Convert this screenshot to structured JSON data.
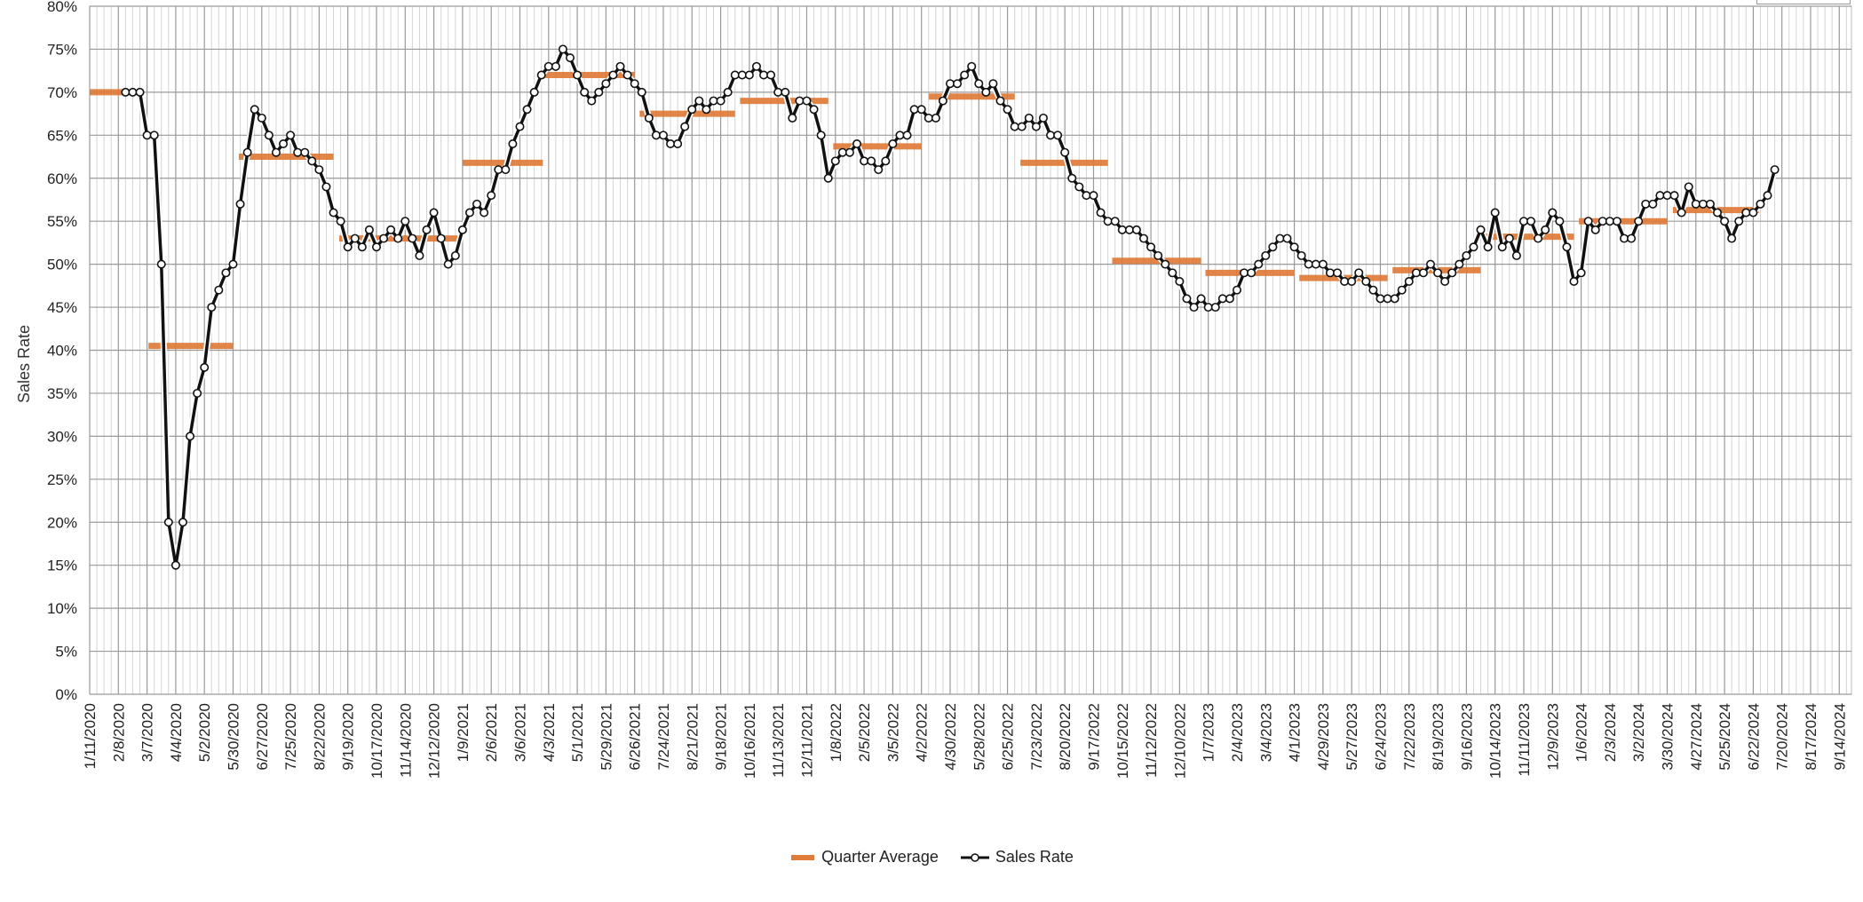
{
  "chart_data": {
    "type": "line",
    "title": "",
    "ylabel": "Sales Rate",
    "xlabel": "",
    "ylim": [
      0,
      80
    ],
    "ytick_step": 5,
    "yticks": [
      "0%",
      "5%",
      "10%",
      "15%",
      "20%",
      "25%",
      "30%",
      "35%",
      "40%",
      "45%",
      "50%",
      "55%",
      "60%",
      "65%",
      "70%",
      "75%",
      "80%"
    ],
    "x_unit": "weeks since 1/11/2020",
    "xlim": [
      0,
      245.7
    ],
    "xtick_interval_weeks": 4,
    "xtick_labels": [
      "1/11/2020",
      "2/8/2020",
      "3/7/2020",
      "4/4/2020",
      "5/2/2020",
      "5/30/2020",
      "6/27/2020",
      "7/25/2020",
      "8/22/2020",
      "9/19/2020",
      "10/17/2020",
      "11/14/2020",
      "12/12/2020",
      "1/9/2021",
      "2/6/2021",
      "3/6/2021",
      "4/3/2021",
      "5/1/2021",
      "5/29/2021",
      "6/26/2021",
      "7/24/2021",
      "8/21/2021",
      "9/18/2021",
      "10/16/2021",
      "11/13/2021",
      "12/11/2021",
      "1/8/2022",
      "2/5/2022",
      "3/5/2022",
      "4/2/2022",
      "4/30/2022",
      "5/28/2022",
      "6/25/2022",
      "7/23/2022",
      "8/20/2022",
      "9/17/2022",
      "10/15/2022",
      "11/12/2022",
      "12/10/2022",
      "1/7/2023",
      "2/4/2023",
      "3/4/2023",
      "4/1/2023",
      "4/29/2023",
      "5/27/2023",
      "6/24/2023",
      "7/22/2023",
      "8/19/2023",
      "9/16/2023",
      "10/14/2023",
      "11/11/2023",
      "12/9/2023",
      "1/6/2024",
      "2/3/2024",
      "3/2/2024",
      "3/30/2024",
      "4/27/2024",
      "5/25/2024",
      "6/22/2024",
      "7/20/2024",
      "8/17/2024",
      "9/14/2024"
    ],
    "grid": true,
    "legend_position": "bottom-center",
    "series": [
      {
        "name": "Sales Rate",
        "color": "#111111",
        "marker": "open-circle",
        "first_week": 5,
        "interval": "weekly",
        "values": [
          70,
          70,
          70,
          65,
          65,
          50,
          20,
          15,
          20,
          30,
          35,
          38,
          45,
          47,
          49,
          50,
          57,
          63,
          68,
          67,
          65,
          63,
          64,
          65,
          63,
          63,
          62,
          61,
          59,
          56,
          55,
          52,
          53,
          52,
          54,
          52,
          53,
          54,
          53,
          55,
          53,
          51,
          54,
          56,
          53,
          50,
          51,
          54,
          56,
          57,
          56,
          58,
          61,
          61,
          64,
          66,
          68,
          70,
          72,
          73,
          73,
          75,
          74,
          72,
          70,
          69,
          70,
          71,
          72,
          73,
          72,
          71,
          70,
          67,
          65,
          65,
          64,
          64,
          66,
          68,
          69,
          68,
          69,
          69,
          70,
          72,
          72,
          72,
          73,
          72,
          72,
          70,
          70,
          67,
          69,
          69,
          68,
          65,
          60,
          62,
          63,
          63,
          64,
          62,
          62,
          61,
          62,
          64,
          65,
          65,
          68,
          68,
          67,
          67,
          69,
          71,
          71,
          72,
          73,
          71,
          70,
          71,
          69,
          68,
          66,
          66,
          67,
          66,
          67,
          65,
          65,
          63,
          60,
          59,
          58,
          58,
          56,
          55,
          55,
          54,
          54,
          54,
          53,
          52,
          51,
          50,
          49,
          48,
          46,
          45,
          46,
          45,
          45,
          46,
          46,
          47,
          49,
          49,
          50,
          51,
          52,
          53,
          53,
          52,
          51,
          50,
          50,
          50,
          49,
          49,
          48,
          48,
          49,
          48,
          47,
          46,
          46,
          46,
          47,
          48,
          49,
          49,
          50,
          49,
          48,
          49,
          50,
          51,
          52,
          54,
          52,
          56,
          52,
          53,
          51,
          55,
          55,
          53,
          54,
          56,
          55,
          52,
          48,
          49,
          55,
          54,
          55,
          55,
          55,
          53,
          53,
          55,
          57,
          57,
          58,
          58,
          58,
          56,
          59,
          57,
          57,
          57,
          56,
          55,
          53,
          55,
          56,
          56,
          57,
          58,
          61
        ]
      },
      {
        "name": "Quarter Average",
        "color": "#E07B39",
        "type": "segments",
        "segments": [
          {
            "start_week": 0,
            "end_week": 4.6,
            "value": 70
          },
          {
            "start_week": 8.2,
            "end_week": 20,
            "value": 40.5
          },
          {
            "start_week": 20.8,
            "end_week": 34,
            "value": 62.5
          },
          {
            "start_week": 34.8,
            "end_week": 51.3,
            "value": 53
          },
          {
            "start_week": 52,
            "end_week": 63.2,
            "value": 61.8
          },
          {
            "start_week": 63.5,
            "end_week": 76,
            "value": 72
          },
          {
            "start_week": 76.7,
            "end_week": 90,
            "value": 67.5
          },
          {
            "start_week": 90.7,
            "end_week": 103,
            "value": 69
          },
          {
            "start_week": 103.7,
            "end_week": 116,
            "value": 63.7
          },
          {
            "start_week": 117,
            "end_week": 129,
            "value": 69.5
          },
          {
            "start_week": 129.8,
            "end_week": 142,
            "value": 61.8
          },
          {
            "start_week": 142.6,
            "end_week": 155,
            "value": 50.4
          },
          {
            "start_week": 155.6,
            "end_week": 168,
            "value": 49
          },
          {
            "start_week": 168.7,
            "end_week": 181,
            "value": 48.4
          },
          {
            "start_week": 181.7,
            "end_week": 194,
            "value": 49.3
          },
          {
            "start_week": 194.6,
            "end_week": 207,
            "value": 53.2
          },
          {
            "start_week": 207.7,
            "end_week": 220,
            "value": 55
          },
          {
            "start_week": 220.8,
            "end_week": 232.8,
            "value": 56.3
          }
        ]
      }
    ]
  },
  "legend": {
    "quarter_average_label": "Quarter Average",
    "sales_rate_label": "Sales Rate"
  }
}
